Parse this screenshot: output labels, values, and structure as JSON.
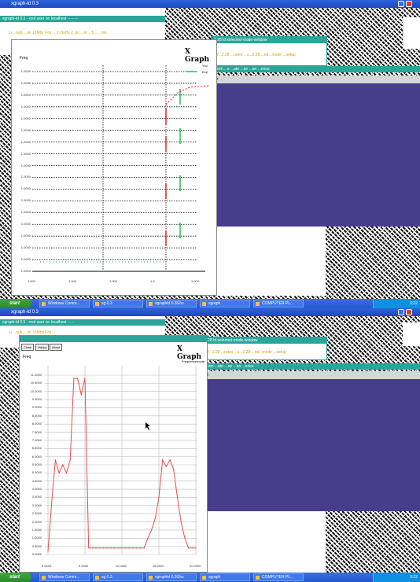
{
  "top": {
    "window_title": "xgraph-ld 0.3",
    "teal1_title": "xgraph-ld 0.3 - root user on localhost  -- -- --",
    "teal1_line": "u ...sub ...on 15Mhz Frq ... 2.2GHz 2, pc ...er   ...5 ... ..ms",
    "graph_title": "X Graph",
    "y_axis_label": "Freq",
    "legend_top": "Yco",
    "legend_bottom": "Exp",
    "teal2_title": "2.28 ld selected-mode-window",
    "teal2_line": "Y...2.28 ...rates ...s...2.28 ...nd...mode ...setup",
    "teal3_title": "xterm   ...x ...ate ...ne ...an ...ence",
    "gray_label": "Yer",
    "y_ticks": [
      "1.0000",
      "1.0000",
      "1.0000",
      "1.0000",
      "1.0000",
      "1.0000",
      "1.0000",
      "1.0000",
      "1.0000",
      "1.0000",
      "1.0000",
      "1.0000",
      "1.0000",
      "1.0000",
      "1.0000",
      "1.0000",
      "1.0000",
      "1.0000"
    ],
    "x_ticks": [
      "1.000",
      "1.000",
      "1.000",
      "1.0",
      "1.000"
    ]
  },
  "taskbar1": {
    "start": "start",
    "tasks": [
      "Windows Comm...",
      "xg 0.3",
      "xgraphld 0.3Ghz",
      "xgraph",
      "COMPUTER PL..."
    ],
    "clock": "3:22"
  },
  "bottom": {
    "window_title": "xgraph-ld 0.3",
    "teal1_title": "xgraph-ld 0.3 - root user on localhost  -- --",
    "teal1_line": "u ...sub ...on 15Mhz Frq ...",
    "graph_title": "X Graph",
    "buttons": [
      "Close",
      "Hdcpy",
      "About"
    ],
    "y_axis_label": "Freq",
    "legend": "Frequencemode",
    "teal2_title": "2.28 ld selected-mode-window",
    "teal2_line": "Y...2.28 ...rates ...s...2.28 ...nd...mode ...setup",
    "teal3_title": "xterm  ...ate ...ne ...an ...ence",
    "gray_label": "Yer",
    "y_ticks": [
      "11.0000",
      "10.5000",
      "10.0000",
      "9.5000",
      "9.0000",
      "8.5000",
      "8.0000",
      "7.5000",
      "7.0000",
      "6.5000",
      "6.0000",
      "5.5000",
      "5.0000",
      "4.5000",
      "4.0000",
      "3.5000",
      "3.0000",
      "2.5000",
      "2.0000",
      "1.5000",
      "1.0000",
      "0.5000",
      "0.0000"
    ],
    "x_ticks": [
      "0.0000",
      "5.0000",
      "10.0000",
      "15.0000",
      "20.0000"
    ]
  },
  "taskbar2": {
    "start": "start",
    "tasks": [
      "Windows Comm...",
      "xg 0.3",
      "xgraphld 0.3Ghz",
      "xgraph",
      "COMPUTER PL..."
    ],
    "clock": "3:22"
  },
  "chart_data": {
    "type": "line",
    "x": [
      0,
      0.5,
      1,
      1.5,
      2,
      2.5,
      3,
      3.5,
      4,
      4.5,
      5,
      5.5,
      6,
      6.5,
      7,
      7.5,
      8,
      8.5,
      9,
      9.5,
      10,
      10.5,
      11,
      11.5,
      12,
      12.5,
      13,
      13.5,
      14,
      14.5,
      15,
      15.5,
      16,
      16.5,
      17,
      17.5,
      18,
      18.5,
      19,
      19.5,
      20
    ],
    "values": [
      0.2,
      3.2,
      5.8,
      5.0,
      5.5,
      5.0,
      5.8,
      10.8,
      10.8,
      9.8,
      10.8,
      0.4,
      0.4,
      0.4,
      0.4,
      0.4,
      0.4,
      0.4,
      0.4,
      0.4,
      0.4,
      0.4,
      0.4,
      0.4,
      0.4,
      0.4,
      0.4,
      1.0,
      1.5,
      2.2,
      3.5,
      5.8,
      5.4,
      5.8,
      5.2,
      3.5,
      2.0,
      1.0,
      0.4,
      0.4,
      0.4
    ],
    "xlim": [
      0,
      20
    ],
    "ylim": [
      0,
      11
    ],
    "grid": true,
    "series_color": "#e05050",
    "legend": "top-right"
  }
}
